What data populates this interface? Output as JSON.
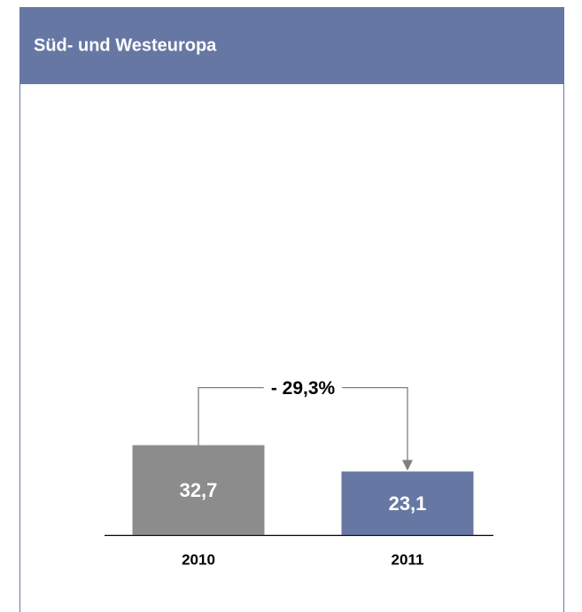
{
  "chart_data": {
    "type": "bar",
    "title": "Süd- und Westeuropa",
    "categories": [
      "2010",
      "2011"
    ],
    "values": [
      32.7,
      23.1
    ],
    "value_labels": [
      "32,7",
      "23,1"
    ],
    "colors": [
      "#8c8c8c",
      "#6677a3"
    ],
    "annotation": "- 29,3%"
  }
}
